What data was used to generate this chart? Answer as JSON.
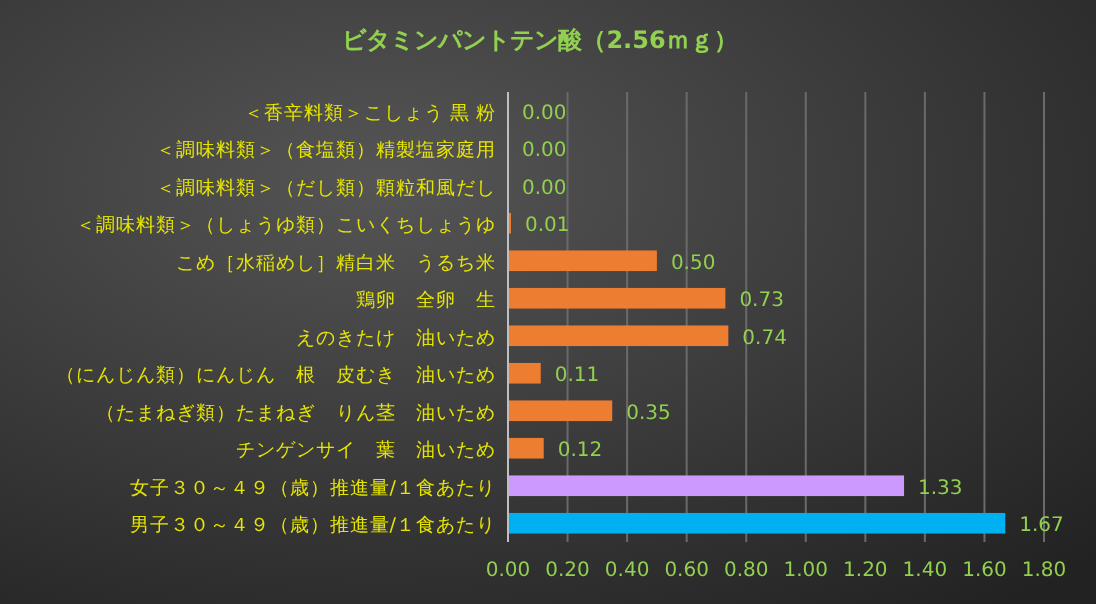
{
  "chart_data": {
    "type": "bar",
    "orientation": "horizontal",
    "title": "ビタミンパントテン酸（2.56ｍｇ）",
    "categories": [
      "＜香辛料類＞こしょう 黒 粉",
      "＜調味料類＞（食塩類）精製塩家庭用",
      "＜調味料類＞（だし類）顆粒和風だし",
      "＜調味料類＞（しょうゆ類）こいくちしょうゆ",
      "こめ［水稲めし］精白米　うるち米",
      "鶏卵　全卵　生",
      "えのきたけ　油いため",
      "（にんじん類）にんじん　根　皮むき　油いため",
      "（たまねぎ類）たまねぎ　りん茎　油いため",
      "チンゲンサイ　葉　油いため",
      "女子３０～４９（歳）推進量/１食あたり",
      "男子３０～４９（歳）推進量/１食あたり"
    ],
    "values": [
      0.0,
      0.0,
      0.0,
      0.01,
      0.5,
      0.73,
      0.74,
      0.11,
      0.35,
      0.12,
      1.33,
      1.67
    ],
    "colors": [
      "#ed7d31",
      "#ed7d31",
      "#ed7d31",
      "#ed7d31",
      "#ed7d31",
      "#ed7d31",
      "#ed7d31",
      "#ed7d31",
      "#ed7d31",
      "#ed7d31",
      "#cc99ff",
      "#00b0f0"
    ],
    "value_labels": [
      "0.00",
      "0.00",
      "0.00",
      "0.01",
      "0.50",
      "0.73",
      "0.74",
      "0.11",
      "0.35",
      "0.12",
      "1.33",
      "1.67"
    ],
    "xlim": [
      0,
      1.8
    ],
    "xticks": [
      {
        "value": 0,
        "label": "0.00"
      },
      {
        "value": 0.2,
        "label": "0.20"
      },
      {
        "value": 0.4,
        "label": "0.40"
      },
      {
        "value": 0.6,
        "label": "0.60"
      },
      {
        "value": 0.8,
        "label": "0.80"
      },
      {
        "value": 1.0,
        "label": "1.00"
      },
      {
        "value": 1.2,
        "label": "1.20"
      },
      {
        "value": 1.4,
        "label": "1.40"
      },
      {
        "value": 1.6,
        "label": "1.60"
      },
      {
        "value": 1.8,
        "label": "1.80"
      }
    ],
    "grid": "x"
  }
}
